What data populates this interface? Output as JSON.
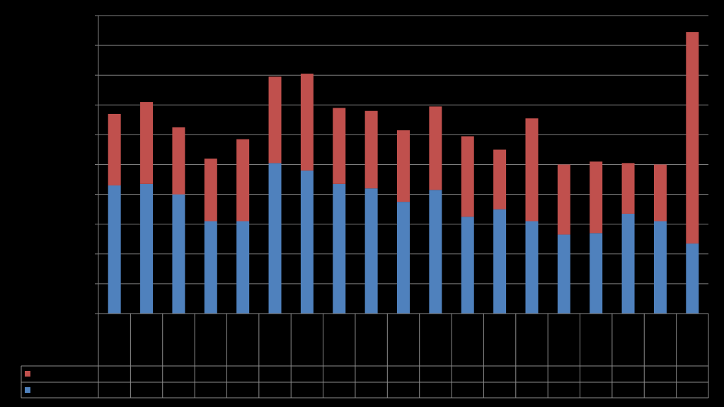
{
  "colors": {
    "background": "#000000",
    "grid": "#7f7f7f",
    "table_border": "#8c8c8c",
    "series_1": "#4f81bd",
    "series_2": "#c0504d"
  },
  "chart_data": {
    "type": "bar",
    "stacked": true,
    "title": "",
    "xlabel": "",
    "ylabel": "",
    "ylim": [
      0,
      10
    ],
    "ytick_count": 10,
    "grid": true,
    "legend": "data-table-below",
    "categories": [
      "",
      "",
      "",
      "",
      "",
      "",
      "",
      "",
      "",
      "",
      "",
      "",
      "",
      "",
      "",
      "",
      "",
      "",
      ""
    ],
    "series": [
      {
        "values": [
          4.3,
          4.35,
          4.0,
          3.1,
          3.1,
          5.05,
          4.8,
          4.35,
          4.2,
          3.75,
          4.15,
          3.25,
          3.5,
          3.1,
          2.65,
          2.7,
          3.35,
          3.1,
          2.35
        ],
        "color": "#4f81bd"
      },
      {
        "values": [
          2.4,
          2.75,
          2.25,
          2.1,
          2.75,
          2.9,
          3.25,
          2.55,
          2.6,
          2.4,
          2.8,
          2.7,
          2.0,
          3.45,
          2.35,
          2.4,
          1.7,
          1.9,
          7.1
        ],
        "color": "#c0504d"
      }
    ]
  }
}
